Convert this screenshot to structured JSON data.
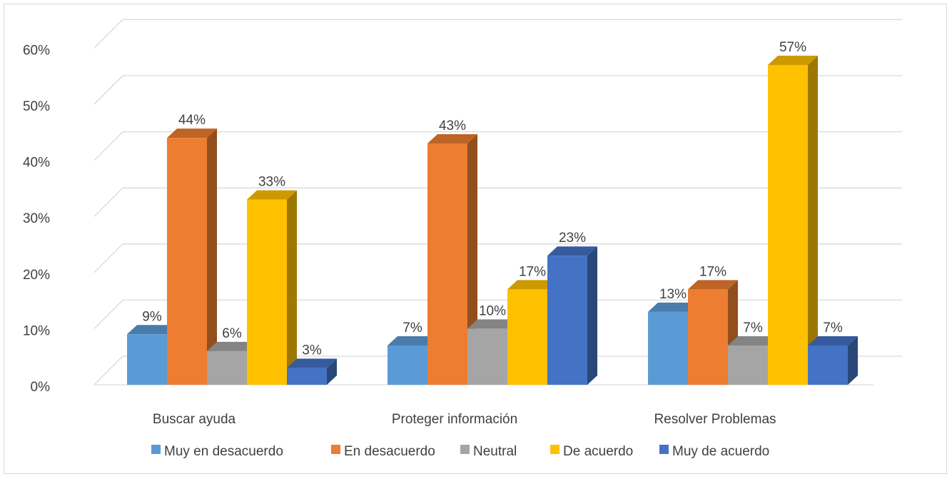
{
  "chart_data": {
    "type": "bar",
    "categories": [
      "Buscar ayuda",
      "Proteger información",
      "Resolver Problemas"
    ],
    "series": [
      {
        "name": "Muy en desacuerdo",
        "values": [
          9,
          7,
          13
        ],
        "color": "#5B9BD5"
      },
      {
        "name": "En desacuerdo",
        "values": [
          44,
          43,
          17
        ],
        "color": "#ED7D31"
      },
      {
        "name": "Neutral",
        "values": [
          6,
          10,
          7
        ],
        "color": "#A5A5A5"
      },
      {
        "name": "De acuerdo",
        "values": [
          33,
          17,
          57
        ],
        "color": "#FFC000"
      },
      {
        "name": "Muy de acuerdo",
        "values": [
          3,
          23,
          7
        ],
        "color": "#4472C4"
      }
    ],
    "data_labels": [
      [
        "9%",
        "7%",
        "13%"
      ],
      [
        "44%",
        "43%",
        "17%"
      ],
      [
        "6%",
        "10%",
        "7%"
      ],
      [
        "33%",
        "17%",
        "57%"
      ],
      [
        "3%",
        "23%",
        "7%"
      ]
    ],
    "y_ticks": [
      "0%",
      "10%",
      "20%",
      "30%",
      "40%",
      "50%",
      "60%"
    ],
    "ylim": [
      0,
      60
    ],
    "grid": true,
    "legend_position": "bottom",
    "three_d": true
  }
}
